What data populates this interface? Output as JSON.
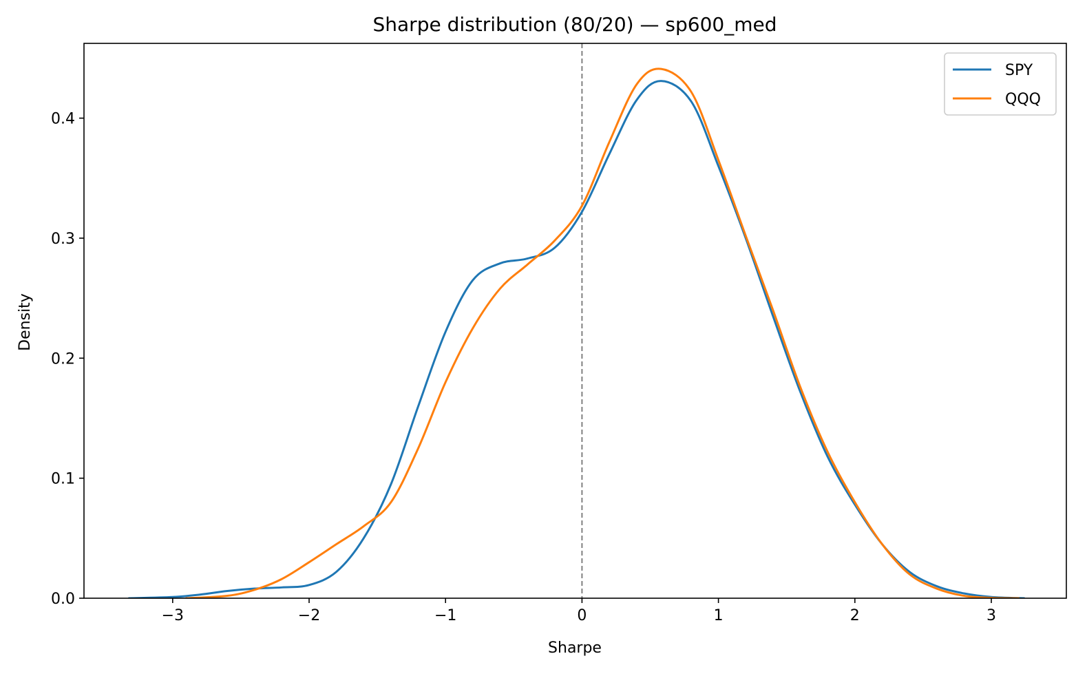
{
  "chart_data": {
    "type": "line",
    "title": "Sharpe distribution (80/20) — sp600_med",
    "xlabel": "Sharpe",
    "ylabel": "Density",
    "xlim": [
      -3.65,
      3.55
    ],
    "ylim": [
      0,
      0.4623
    ],
    "xticks": [
      -3,
      -2,
      -1,
      0,
      1,
      2,
      3
    ],
    "xtick_labels": [
      "−3",
      "−2",
      "−1",
      "0",
      "1",
      "2",
      "3"
    ],
    "yticks": [
      0.0,
      0.1,
      0.2,
      0.3,
      0.4
    ],
    "ytick_labels": [
      "0.0",
      "0.1",
      "0.2",
      "0.3",
      "0.4"
    ],
    "grid": false,
    "legend_position": "top-right",
    "reference_line": {
      "x": 0,
      "style": "dashed",
      "color": "#808080"
    },
    "series": [
      {
        "name": "SPY",
        "color": "#1f77b4",
        "x": [
          -3.32,
          -3.0,
          -2.8,
          -2.6,
          -2.4,
          -2.2,
          -2.0,
          -1.8,
          -1.6,
          -1.4,
          -1.2,
          -1.0,
          -0.8,
          -0.6,
          -0.4,
          -0.2,
          0.0,
          0.2,
          0.4,
          0.58,
          0.8,
          1.0,
          1.2,
          1.4,
          1.6,
          1.8,
          2.0,
          2.2,
          2.4,
          2.6,
          2.8,
          3.0,
          3.24
        ],
        "y": [
          0.0,
          0.001,
          0.003,
          0.006,
          0.008,
          0.009,
          0.011,
          0.022,
          0.05,
          0.095,
          0.16,
          0.222,
          0.265,
          0.279,
          0.283,
          0.292,
          0.322,
          0.37,
          0.415,
          0.431,
          0.414,
          0.36,
          0.3,
          0.235,
          0.172,
          0.118,
          0.078,
          0.045,
          0.022,
          0.01,
          0.004,
          0.001,
          0.0
        ]
      },
      {
        "name": "QQQ",
        "color": "#ff7f0e",
        "x": [
          -2.9,
          -2.6,
          -2.4,
          -2.2,
          -2.0,
          -1.8,
          -1.6,
          -1.4,
          -1.2,
          -1.0,
          -0.8,
          -0.6,
          -0.4,
          -0.2,
          0.0,
          0.2,
          0.4,
          0.58,
          0.8,
          1.0,
          1.2,
          1.4,
          1.6,
          1.8,
          2.0,
          2.2,
          2.4,
          2.6,
          2.8,
          3.0,
          3.2
        ],
        "y": [
          0.0,
          0.002,
          0.007,
          0.016,
          0.03,
          0.045,
          0.06,
          0.08,
          0.125,
          0.18,
          0.225,
          0.258,
          0.278,
          0.298,
          0.327,
          0.38,
          0.428,
          0.441,
          0.422,
          0.365,
          0.302,
          0.24,
          0.176,
          0.122,
          0.08,
          0.045,
          0.02,
          0.008,
          0.002,
          0.0003,
          0.0
        ]
      }
    ]
  }
}
